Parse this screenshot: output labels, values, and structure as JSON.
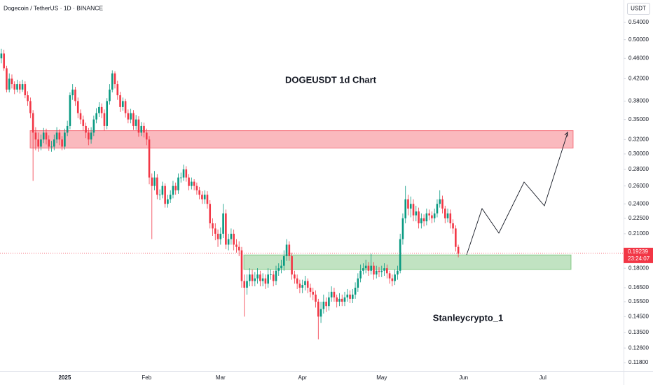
{
  "chart_data": {
    "type": "candlestick",
    "header": "Dogecoin / TetherUS · 1D · BINANCE",
    "currency": "USDT",
    "title": "DOGEUSDT 1d Chart",
    "author": "Stanleycrypto_1",
    "log_scale": true,
    "grid": false,
    "up_color": "#089981",
    "down_color": "#f23645",
    "ylim": [
      0.1137,
      0.597
    ],
    "yticks": [
      {
        "value": 0.118,
        "label": "0.11800"
      },
      {
        "value": 0.126,
        "label": "0.12600"
      },
      {
        "value": 0.135,
        "label": "0.13500"
      },
      {
        "value": 0.145,
        "label": "0.14500"
      },
      {
        "value": 0.155,
        "label": "0.15500"
      },
      {
        "value": 0.165,
        "label": "0.16500"
      },
      {
        "value": 0.18,
        "label": "0.18000"
      },
      {
        "value": 0.21,
        "label": "0.21000"
      },
      {
        "value": 0.225,
        "label": "0.22500"
      },
      {
        "value": 0.24,
        "label": "0.24000"
      },
      {
        "value": 0.26,
        "label": "0.26000"
      },
      {
        "value": 0.28,
        "label": "0.28000"
      },
      {
        "value": 0.3,
        "label": "0.30000"
      },
      {
        "value": 0.32,
        "label": "0.32000"
      },
      {
        "value": 0.35,
        "label": "0.35000"
      },
      {
        "value": 0.38,
        "label": "0.38000"
      },
      {
        "value": 0.42,
        "label": "0.42000"
      },
      {
        "value": 0.46,
        "label": "0.46000"
      },
      {
        "value": 0.5,
        "label": "0.50000"
      },
      {
        "value": 0.54,
        "label": "0.54000"
      }
    ],
    "last_price": 0.19239,
    "last_price_color": "#f23645",
    "countdown": "23:24:07",
    "zones": [
      {
        "color": "#f23645",
        "ylim": [
          0.308,
          0.333
        ]
      },
      {
        "color": "#4caf50",
        "ylim": [
          0.179,
          0.191
        ]
      }
    ],
    "categories": [
      null,
      null,
      null,
      null,
      null,
      null,
      null,
      null,
      null,
      null,
      null,
      null,
      null,
      null,
      null,
      null,
      null,
      null,
      null,
      null,
      null,
      null,
      null,
      null,
      "2025",
      null,
      null,
      null,
      null,
      null,
      null,
      null,
      null,
      null,
      null,
      null,
      null,
      null,
      null,
      null,
      null,
      null,
      null,
      null,
      null,
      null,
      null,
      null,
      null,
      null,
      null,
      null,
      null,
      null,
      null,
      "Feb",
      null,
      null,
      null,
      null,
      null,
      null,
      null,
      null,
      null,
      null,
      null,
      null,
      null,
      null,
      null,
      null,
      null,
      null,
      null,
      null,
      null,
      null,
      null,
      null,
      null,
      null,
      null,
      "Mar",
      null,
      null,
      null,
      null,
      null,
      null,
      null,
      null,
      null,
      null,
      null,
      null,
      null,
      null,
      null,
      null,
      null,
      null,
      null,
      null,
      null,
      null,
      null,
      null,
      null,
      null,
      null,
      null,
      null,
      null,
      "Apr",
      null,
      null,
      null,
      null,
      null,
      null,
      null,
      null,
      null,
      null,
      null,
      null,
      null,
      null,
      null,
      null,
      null,
      null,
      null,
      null,
      null,
      null,
      null,
      null,
      null,
      null,
      null,
      null,
      null,
      "May",
      null,
      null,
      null,
      null,
      null,
      null,
      null,
      null,
      null,
      null,
      null,
      null,
      null,
      null,
      null,
      null,
      null,
      null,
      null,
      null,
      null,
      null,
      null,
      null,
      null,
      null,
      null,
      null,
      null,
      null,
      "Jun",
      null,
      null,
      null,
      null,
      null,
      null,
      null,
      null,
      null,
      null,
      null,
      null,
      null,
      null,
      null,
      null,
      null,
      null,
      null,
      null,
      null,
      null,
      null,
      null,
      null,
      null,
      null,
      null,
      null,
      "Jul",
      null,
      null,
      null,
      null,
      null,
      null,
      null,
      null,
      null,
      null,
      null,
      null,
      null,
      null,
      null,
      null,
      null,
      null,
      null,
      null,
      null,
      null,
      null,
      null,
      null,
      null,
      null,
      null,
      null,
      null
    ],
    "open": [
      0.46,
      0.47,
      0.44,
      0.4,
      0.42,
      0.41,
      0.4,
      0.41,
      0.4,
      0.41,
      0.39,
      0.38,
      0.36,
      0.33,
      0.32,
      0.31,
      0.32,
      0.33,
      0.32,
      0.31,
      0.31,
      0.32,
      0.33,
      0.32,
      0.31,
      0.33,
      0.34,
      0.39,
      0.4,
      0.38,
      0.36,
      0.35,
      0.34,
      0.33,
      0.32,
      0.33,
      0.35,
      0.36,
      0.37,
      0.36,
      0.34,
      0.38,
      0.4,
      0.43,
      0.41,
      0.39,
      0.37,
      0.38,
      0.36,
      0.35,
      0.36,
      0.34,
      0.35,
      0.33,
      0.34,
      0.33,
      0.32,
      0.27,
      0.26,
      0.27,
      0.25,
      0.25,
      0.26,
      0.24,
      0.245,
      0.25,
      0.26,
      0.255,
      0.27,
      0.27,
      0.28,
      0.27,
      0.26,
      0.265,
      0.26,
      0.255,
      0.25,
      0.245,
      0.25,
      0.24,
      0.22,
      0.215,
      0.21,
      0.205,
      0.21,
      0.23,
      0.2,
      0.205,
      0.21,
      0.2,
      0.198,
      0.195,
      0.17,
      0.165,
      0.17,
      0.175,
      0.17,
      0.172,
      0.175,
      0.17,
      0.172,
      0.168,
      0.175,
      0.175,
      0.17,
      0.178,
      0.18,
      0.182,
      0.19,
      0.2,
      0.19,
      0.175,
      0.172,
      0.168,
      0.165,
      0.167,
      0.17,
      0.165,
      0.162,
      0.16,
      0.155,
      0.145,
      0.15,
      0.155,
      0.152,
      0.158,
      0.162,
      0.158,
      0.155,
      0.157,
      0.155,
      0.158,
      0.16,
      0.157,
      0.16,
      0.165,
      0.172,
      0.178,
      0.18,
      0.182,
      0.178,
      0.182,
      0.175,
      0.178,
      0.177,
      0.178,
      0.18,
      0.176,
      0.172,
      0.17,
      0.175,
      0.178,
      0.205,
      0.225,
      0.245,
      0.235,
      0.24,
      0.228,
      0.232,
      0.22,
      0.225,
      0.222,
      0.23,
      0.228,
      0.225,
      0.23,
      0.24,
      0.245,
      0.235,
      0.225,
      0.23,
      0.22,
      0.215,
      0.198,
      null,
      null,
      null,
      null,
      null,
      null,
      null,
      null,
      null,
      null,
      null,
      null,
      null,
      null,
      null,
      null,
      null,
      null,
      null,
      null,
      null,
      null,
      null,
      null,
      null,
      null,
      null,
      null,
      null,
      null,
      null,
      null,
      null,
      null,
      null,
      null,
      null,
      null,
      null,
      null,
      null,
      null,
      null,
      null,
      null,
      null,
      null,
      null,
      null,
      null,
      null,
      null,
      null,
      null,
      null,
      null,
      null,
      null,
      null,
      null,
      null,
      null
    ],
    "high": [
      0.48,
      0.478,
      0.445,
      0.43,
      0.428,
      0.415,
      0.418,
      0.415,
      0.418,
      0.415,
      0.397,
      0.386,
      0.365,
      0.338,
      0.33,
      0.327,
      0.337,
      0.336,
      0.326,
      0.318,
      0.327,
      0.338,
      0.335,
      0.325,
      0.336,
      0.348,
      0.395,
      0.41,
      0.405,
      0.386,
      0.366,
      0.356,
      0.345,
      0.337,
      0.338,
      0.356,
      0.368,
      0.378,
      0.376,
      0.366,
      0.385,
      0.41,
      0.436,
      0.434,
      0.416,
      0.396,
      0.386,
      0.384,
      0.366,
      0.367,
      0.365,
      0.357,
      0.355,
      0.346,
      0.345,
      0.336,
      0.325,
      0.275,
      0.278,
      0.274,
      0.256,
      0.265,
      0.263,
      0.25,
      0.255,
      0.266,
      0.264,
      0.275,
      0.276,
      0.286,
      0.284,
      0.274,
      0.27,
      0.268,
      0.264,
      0.259,
      0.254,
      0.255,
      0.254,
      0.244,
      0.225,
      0.22,
      0.214,
      0.216,
      0.24,
      0.234,
      0.21,
      0.215,
      0.214,
      0.205,
      0.203,
      0.198,
      0.175,
      0.175,
      0.18,
      0.179,
      0.177,
      0.18,
      0.178,
      0.176,
      0.175,
      0.18,
      0.179,
      0.178,
      0.182,
      0.184,
      0.187,
      0.195,
      0.205,
      0.203,
      0.193,
      0.178,
      0.175,
      0.171,
      0.171,
      0.174,
      0.172,
      0.168,
      0.165,
      0.163,
      0.157,
      0.155,
      0.16,
      0.158,
      0.162,
      0.166,
      0.165,
      0.16,
      0.161,
      0.16,
      0.162,
      0.164,
      0.163,
      0.164,
      0.169,
      0.176,
      0.183,
      0.184,
      0.187,
      0.185,
      0.192,
      0.185,
      0.182,
      0.181,
      0.182,
      0.184,
      0.183,
      0.178,
      0.175,
      0.179,
      0.182,
      0.21,
      0.23,
      0.26,
      0.25,
      0.248,
      0.245,
      0.238,
      0.236,
      0.23,
      0.229,
      0.235,
      0.234,
      0.232,
      0.235,
      0.245,
      0.255,
      0.249,
      0.238,
      0.235,
      0.234,
      0.224,
      0.218,
      0.2,
      null,
      null,
      null,
      null,
      null,
      null,
      null,
      null,
      null,
      null,
      null,
      null,
      null,
      null,
      null,
      null,
      null,
      null,
      null,
      null,
      null,
      null,
      null,
      null,
      null,
      null,
      null,
      null,
      null,
      null,
      null,
      null,
      null,
      null,
      null,
      null,
      null,
      null,
      null,
      null,
      null,
      null,
      null,
      null,
      null,
      null,
      null,
      null,
      null,
      null,
      null,
      null,
      null,
      null,
      null,
      null,
      null,
      null,
      null,
      null,
      null,
      null
    ],
    "low": [
      0.45,
      0.435,
      0.395,
      0.395,
      0.402,
      0.392,
      0.395,
      0.393,
      0.396,
      0.385,
      0.372,
      0.352,
      0.266,
      0.305,
      0.303,
      0.305,
      0.315,
      0.313,
      0.304,
      0.303,
      0.305,
      0.315,
      0.312,
      0.305,
      0.306,
      0.325,
      0.335,
      0.382,
      0.372,
      0.352,
      0.343,
      0.333,
      0.322,
      0.312,
      0.314,
      0.325,
      0.344,
      0.354,
      0.352,
      0.333,
      0.335,
      0.374,
      0.395,
      0.402,
      0.382,
      0.362,
      0.364,
      0.353,
      0.344,
      0.344,
      0.334,
      0.334,
      0.324,
      0.325,
      0.323,
      0.312,
      0.262,
      0.205,
      0.255,
      0.245,
      0.244,
      0.246,
      0.236,
      0.236,
      0.241,
      0.246,
      0.25,
      0.251,
      0.264,
      0.266,
      0.265,
      0.255,
      0.256,
      0.255,
      0.25,
      0.245,
      0.24,
      0.24,
      0.235,
      0.215,
      0.208,
      0.204,
      0.198,
      0.2,
      0.206,
      0.196,
      0.195,
      0.2,
      0.195,
      0.193,
      0.19,
      0.165,
      0.145,
      0.16,
      0.166,
      0.166,
      0.166,
      0.168,
      0.166,
      0.166,
      0.164,
      0.165,
      0.171,
      0.166,
      0.167,
      0.174,
      0.176,
      0.178,
      0.186,
      0.186,
      0.171,
      0.168,
      0.164,
      0.161,
      0.161,
      0.163,
      0.161,
      0.158,
      0.156,
      0.151,
      0.131,
      0.141,
      0.147,
      0.148,
      0.149,
      0.155,
      0.155,
      0.151,
      0.152,
      0.152,
      0.152,
      0.155,
      0.154,
      0.154,
      0.157,
      0.162,
      0.169,
      0.175,
      0.176,
      0.174,
      0.175,
      0.171,
      0.172,
      0.173,
      0.173,
      0.174,
      0.172,
      0.168,
      0.166,
      0.167,
      0.171,
      0.176,
      0.2,
      0.22,
      0.228,
      0.226,
      0.222,
      0.222,
      0.215,
      0.215,
      0.217,
      0.218,
      0.223,
      0.22,
      0.221,
      0.226,
      0.236,
      0.23,
      0.22,
      0.221,
      0.215,
      0.21,
      0.194,
      0.189,
      null,
      null,
      null,
      null,
      null,
      null,
      null,
      null,
      null,
      null,
      null,
      null,
      null,
      null,
      null,
      null,
      null,
      null,
      null,
      null,
      null,
      null,
      null,
      null,
      null,
      null,
      null,
      null,
      null,
      null,
      null,
      null,
      null,
      null,
      null,
      null,
      null,
      null,
      null,
      null,
      null,
      null,
      null,
      null,
      null,
      null,
      null,
      null,
      null,
      null,
      null,
      null,
      null,
      null,
      null,
      null,
      null,
      null,
      null,
      null,
      null,
      null
    ],
    "close": [
      0.47,
      0.44,
      0.4,
      0.42,
      0.41,
      0.4,
      0.41,
      0.4,
      0.41,
      0.39,
      0.38,
      0.36,
      0.33,
      0.32,
      0.31,
      0.32,
      0.33,
      0.32,
      0.31,
      0.31,
      0.32,
      0.33,
      0.32,
      0.31,
      0.33,
      0.34,
      0.39,
      0.4,
      0.38,
      0.36,
      0.35,
      0.34,
      0.33,
      0.32,
      0.33,
      0.35,
      0.36,
      0.37,
      0.36,
      0.34,
      0.38,
      0.4,
      0.43,
      0.41,
      0.39,
      0.37,
      0.38,
      0.36,
      0.35,
      0.36,
      0.34,
      0.35,
      0.33,
      0.34,
      0.33,
      0.32,
      0.27,
      0.26,
      0.27,
      0.25,
      0.25,
      0.26,
      0.24,
      0.245,
      0.25,
      0.26,
      0.255,
      0.27,
      0.27,
      0.28,
      0.27,
      0.26,
      0.265,
      0.26,
      0.255,
      0.25,
      0.245,
      0.25,
      0.24,
      0.22,
      0.215,
      0.21,
      0.205,
      0.21,
      0.23,
      0.2,
      0.205,
      0.21,
      0.2,
      0.198,
      0.195,
      0.17,
      0.165,
      0.17,
      0.175,
      0.17,
      0.172,
      0.175,
      0.17,
      0.172,
      0.168,
      0.175,
      0.175,
      0.17,
      0.178,
      0.18,
      0.182,
      0.19,
      0.2,
      0.19,
      0.175,
      0.172,
      0.168,
      0.165,
      0.167,
      0.17,
      0.165,
      0.162,
      0.16,
      0.155,
      0.145,
      0.15,
      0.155,
      0.152,
      0.158,
      0.162,
      0.158,
      0.155,
      0.157,
      0.155,
      0.158,
      0.16,
      0.157,
      0.16,
      0.165,
      0.172,
      0.178,
      0.18,
      0.182,
      0.178,
      0.182,
      0.175,
      0.178,
      0.177,
      0.178,
      0.18,
      0.176,
      0.172,
      0.17,
      0.175,
      0.178,
      0.205,
      0.225,
      0.245,
      0.235,
      0.24,
      0.228,
      0.232,
      0.22,
      0.225,
      0.222,
      0.23,
      0.228,
      0.225,
      0.23,
      0.24,
      0.245,
      0.235,
      0.225,
      0.23,
      0.22,
      0.215,
      0.198,
      0.192,
      null,
      null,
      null,
      null,
      null,
      null,
      null,
      null,
      null,
      null,
      null,
      null,
      null,
      null,
      null,
      null,
      null,
      null,
      null,
      null,
      null,
      null,
      null,
      null,
      null,
      null,
      null,
      null,
      null,
      null,
      null,
      null,
      null,
      null,
      null,
      null,
      null,
      null,
      null,
      null,
      null,
      null,
      null,
      null,
      null,
      null,
      null,
      null,
      null,
      null,
      null,
      null,
      null,
      null,
      null,
      null,
      null,
      null,
      null,
      null,
      null,
      null
    ]
  }
}
